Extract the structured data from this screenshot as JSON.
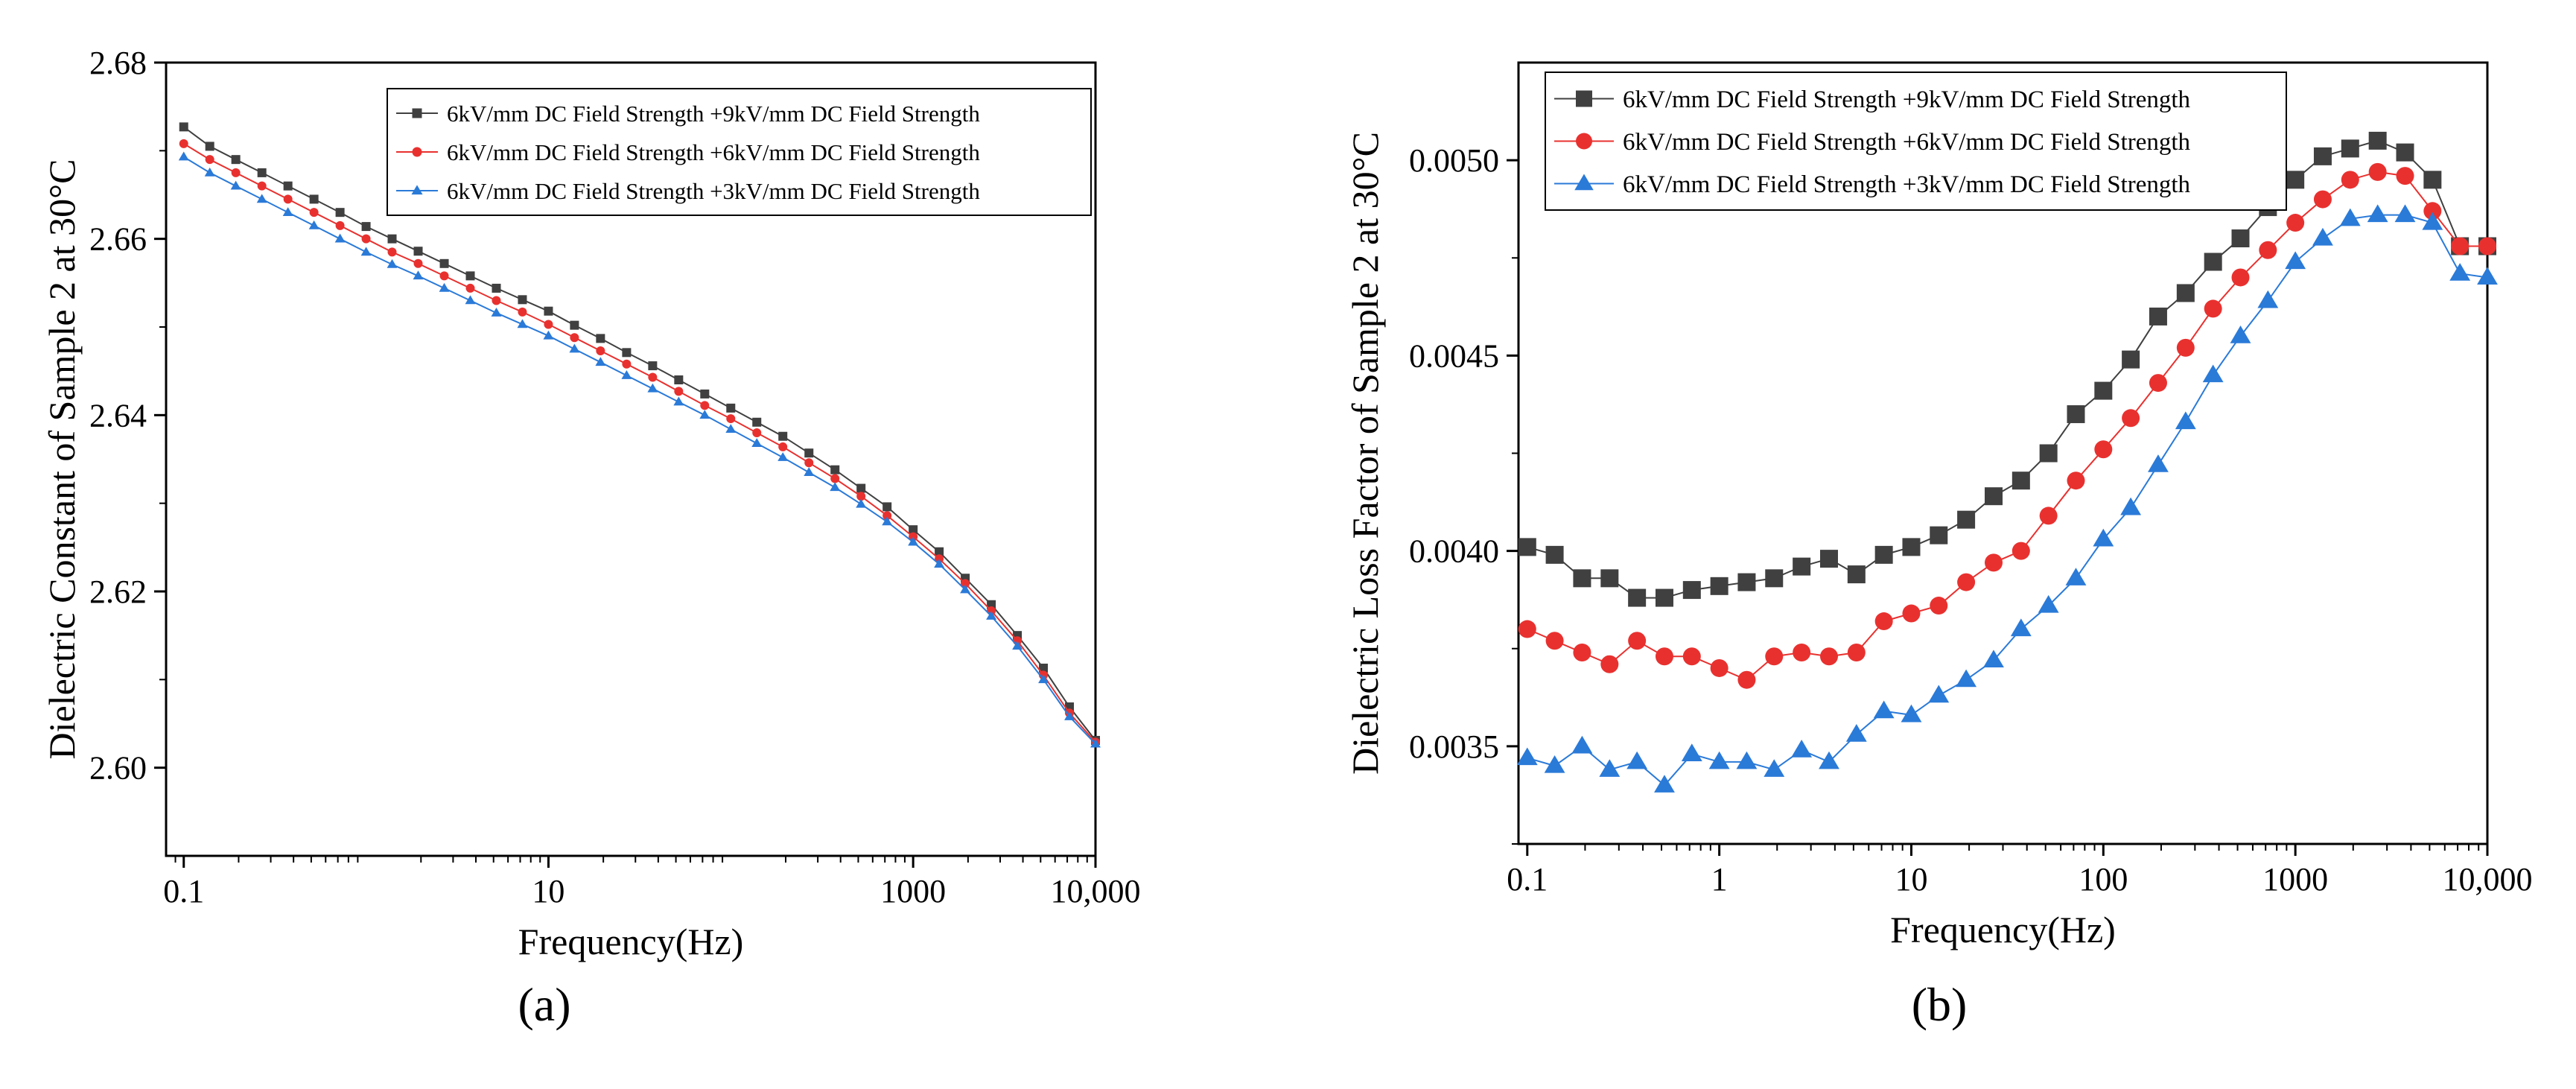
{
  "figure": {
    "panel_a_label": "(a)",
    "panel_b_label": "(b)"
  },
  "chart_data": [
    {
      "id": "a",
      "type": "line",
      "title": "",
      "xlabel": "Frequency(Hz)",
      "ylabel": "Dielectric Constant of Sample 2 at 30°C",
      "xscale": "log",
      "xlim": [
        0.08,
        10000
      ],
      "ylim": [
        2.59,
        2.68
      ],
      "xticks": [
        0.1,
        10,
        1000,
        10000
      ],
      "xtick_labels": [
        "0.1",
        "10",
        "1000",
        "10,000"
      ],
      "yticks": [
        2.6,
        2.62,
        2.64,
        2.66,
        2.68
      ],
      "ytick_labels": [
        "2.60",
        "2.62",
        "2.64",
        "2.66",
        "2.68"
      ],
      "legend_position": "top-right",
      "x": [
        0.1,
        0.1389,
        0.193,
        0.2683,
        0.3728,
        0.518,
        0.7197,
        1.0,
        1.389,
        1.93,
        2.683,
        3.728,
        5.18,
        7.197,
        10,
        13.89,
        19.3,
        26.83,
        37.28,
        51.8,
        71.97,
        100,
        138.9,
        193,
        268.3,
        372.8,
        518,
        719.7,
        1000,
        1389,
        1930,
        2683,
        3728,
        5180,
        7197,
        10000
      ],
      "series": [
        {
          "name": "6kV/mm DC Field Strength +9kV/mm DC Field Strength",
          "color": "#404040",
          "marker": "square",
          "values": [
            2.6727,
            2.6705,
            2.669,
            2.6675,
            2.666,
            2.6645,
            2.663,
            2.6614,
            2.66,
            2.6586,
            2.6572,
            2.6558,
            2.6544,
            2.6531,
            2.6518,
            2.6502,
            2.6487,
            2.6471,
            2.6456,
            2.644,
            2.6424,
            2.6408,
            2.6392,
            2.6376,
            2.6357,
            2.6338,
            2.6317,
            2.6296,
            2.627,
            2.6245,
            2.6215,
            2.6185,
            2.615,
            2.6113,
            2.6069,
            2.6031
          ]
        },
        {
          "name": "6kV/mm DC Field Strength +6kV/mm DC Field Strength",
          "color": "#e8312f",
          "marker": "circle",
          "values": [
            2.6708,
            2.669,
            2.6675,
            2.666,
            2.6645,
            2.663,
            2.6615,
            2.66,
            2.6585,
            2.6572,
            2.6558,
            2.6544,
            2.653,
            2.6517,
            2.6503,
            2.6488,
            2.6473,
            2.6458,
            2.6443,
            2.6427,
            2.6411,
            2.6396,
            2.638,
            2.6364,
            2.6346,
            2.6328,
            2.6308,
            2.6286,
            2.6262,
            2.6237,
            2.6209,
            2.6178,
            2.6144,
            2.6105,
            2.6062,
            2.6029
          ]
        },
        {
          "name": "6kV/mm DC Field Strength +3kV/mm DC Field Strength",
          "color": "#2a7ad8",
          "marker": "triangle",
          "values": [
            2.6693,
            2.6675,
            2.666,
            2.6645,
            2.663,
            2.6615,
            2.66,
            2.6585,
            2.6571,
            2.6558,
            2.6544,
            2.653,
            2.6516,
            2.6503,
            2.649,
            2.6475,
            2.646,
            2.6445,
            2.643,
            2.6415,
            2.64,
            2.6384,
            2.6368,
            2.6352,
            2.6335,
            2.6318,
            2.6299,
            2.6279,
            2.6256,
            2.6231,
            2.6202,
            2.6172,
            2.6138,
            2.61,
            2.6058,
            2.6027
          ]
        }
      ]
    },
    {
      "id": "b",
      "type": "line",
      "title": "",
      "xlabel": "Frequency(Hz)",
      "ylabel": "Dielectric Loss Factor of Sample 2 at 30°C",
      "xscale": "log",
      "xlim": [
        0.09,
        10000
      ],
      "ylim": [
        0.00325,
        0.00525
      ],
      "xticks": [
        0.1,
        1,
        10,
        100,
        1000,
        10000
      ],
      "xtick_labels": [
        "0.1",
        "1",
        "10",
        "100",
        "1000",
        "10,000"
      ],
      "yticks": [
        0.0035,
        0.004,
        0.0045,
        0.005
      ],
      "ytick_labels": [
        "0.0035",
        "0.0040",
        "0.0045",
        "0.0050"
      ],
      "legend_position": "top-left",
      "x": [
        0.1,
        0.1389,
        0.193,
        0.2683,
        0.3728,
        0.518,
        0.7197,
        1.0,
        1.389,
        1.93,
        2.683,
        3.728,
        5.18,
        7.197,
        10,
        13.89,
        19.3,
        26.83,
        37.28,
        51.8,
        71.97,
        100,
        138.9,
        193,
        268.3,
        372.8,
        518,
        719.7,
        1000,
        1389,
        1930,
        2683,
        3728,
        5180,
        7197,
        10000
      ],
      "series": [
        {
          "name": "6kV/mm DC Field Strength +9kV/mm DC Field Strength",
          "color": "#404040",
          "marker": "square",
          "values": [
            0.00401,
            0.00399,
            0.00393,
            0.00393,
            0.00388,
            0.00388,
            0.0039,
            0.00391,
            0.00392,
            0.00393,
            0.00396,
            0.00398,
            0.00394,
            0.00399,
            0.00401,
            0.00404,
            0.00408,
            0.00414,
            0.00418,
            0.00425,
            0.00435,
            0.00441,
            0.00449,
            0.0046,
            0.00466,
            0.00474,
            0.0048,
            0.00488,
            0.00495,
            0.00501,
            0.00503,
            0.00505,
            0.00502,
            0.00495,
            0.00478,
            0.00478
          ]
        },
        {
          "name": "6kV/mm DC Field Strength +6kV/mm DC Field Strength",
          "color": "#e8312f",
          "marker": "circle",
          "values": [
            0.0038,
            0.00377,
            0.00374,
            0.00371,
            0.00377,
            0.00373,
            0.00373,
            0.0037,
            0.00367,
            0.00373,
            0.00374,
            0.00373,
            0.00374,
            0.00382,
            0.00384,
            0.00386,
            0.00392,
            0.00397,
            0.004,
            0.00409,
            0.00418,
            0.00426,
            0.00434,
            0.00443,
            0.00452,
            0.00462,
            0.0047,
            0.00477,
            0.00484,
            0.0049,
            0.00495,
            0.00497,
            0.00496,
            0.00487,
            0.00478,
            0.00478
          ]
        },
        {
          "name": "6kV/mm DC Field Strength +3kV/mm DC Field Strength",
          "color": "#2a7ad8",
          "marker": "triangle",
          "values": [
            0.00347,
            0.00345,
            0.0035,
            0.00344,
            0.00346,
            0.0034,
            0.00348,
            0.00346,
            0.00346,
            0.00344,
            0.00349,
            0.00346,
            0.00353,
            0.00359,
            0.00358,
            0.00363,
            0.00367,
            0.00372,
            0.0038,
            0.00386,
            0.00393,
            0.00403,
            0.00411,
            0.00422,
            0.00433,
            0.00445,
            0.00455,
            0.00464,
            0.00474,
            0.0048,
            0.00485,
            0.00486,
            0.00486,
            0.00484,
            0.00471,
            0.0047
          ]
        }
      ]
    }
  ]
}
